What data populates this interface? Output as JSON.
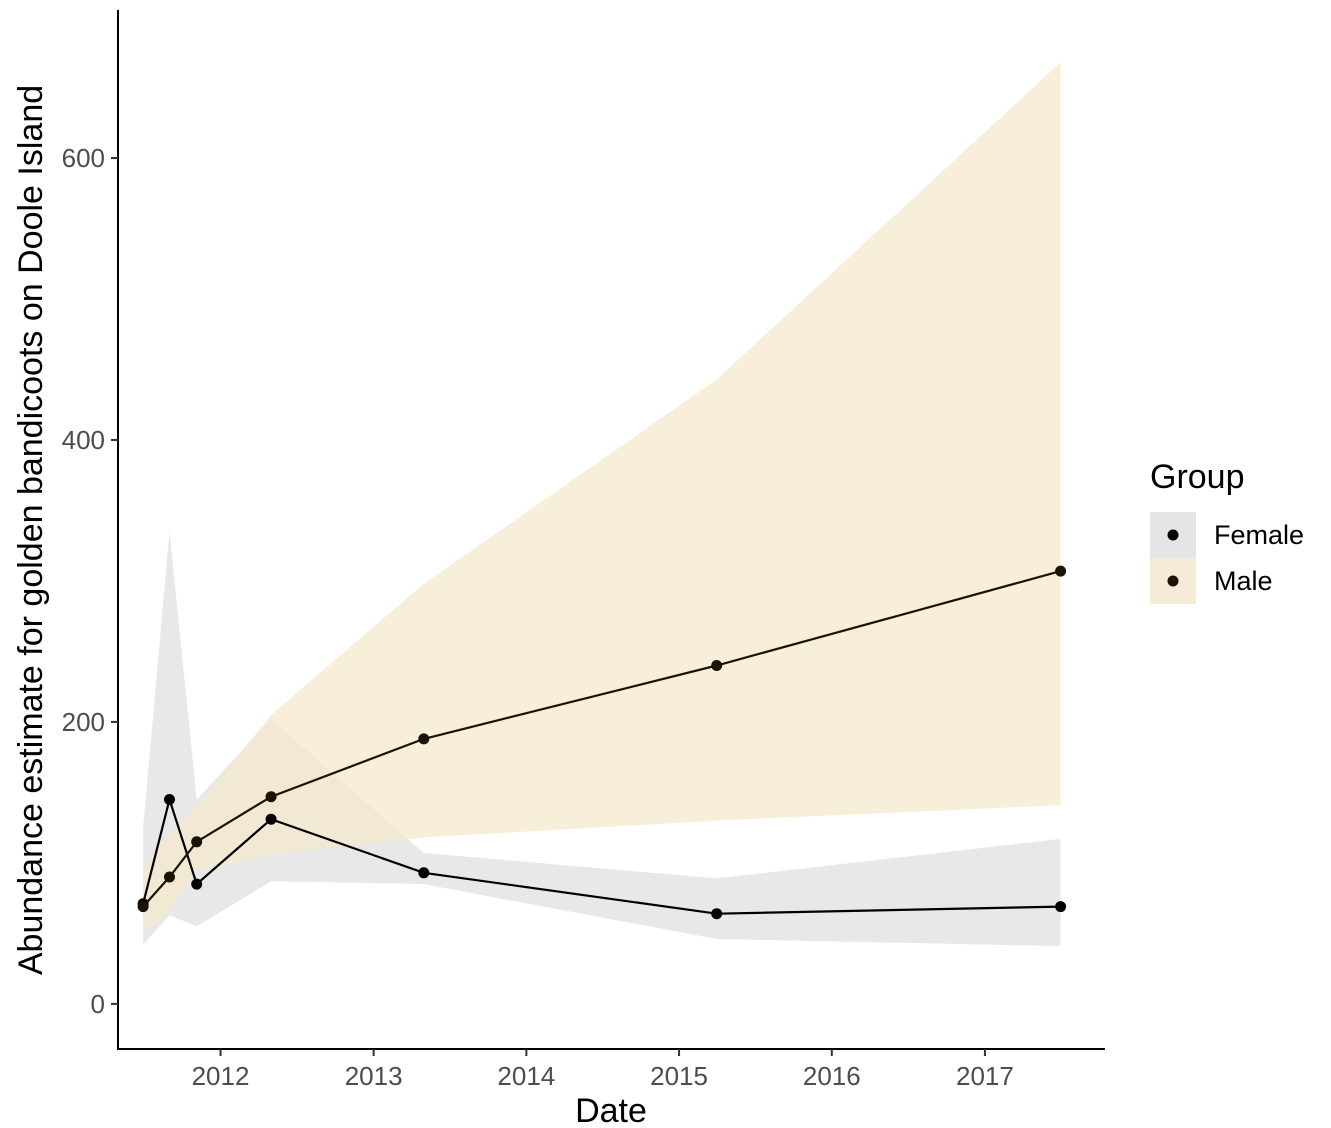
{
  "chart_data": {
    "type": "line",
    "xlabel": "Date",
    "ylabel": "Abundance estimate for golden bandicoots on Doole Island",
    "xlim": [
      "2011-05-01",
      "2017-10-15"
    ],
    "ylim": [
      -32,
      705
    ],
    "x_ticks": [
      {
        "date": "2012-01-01",
        "label": "2012"
      },
      {
        "date": "2013-01-01",
        "label": "2013"
      },
      {
        "date": "2014-01-01",
        "label": "2014"
      },
      {
        "date": "2015-01-01",
        "label": "2015"
      },
      {
        "date": "2016-01-01",
        "label": "2016"
      },
      {
        "date": "2017-01-01",
        "label": "2017"
      }
    ],
    "y_ticks": [
      {
        "value": 0,
        "label": "0"
      },
      {
        "value": 200,
        "label": "200"
      },
      {
        "value": 400,
        "label": "400"
      },
      {
        "value": 600,
        "label": "600"
      }
    ],
    "grid": false,
    "legend": {
      "title": "Group",
      "position": "right"
    },
    "series": [
      {
        "name": "Female",
        "ribbon_color": "#e0e0e0",
        "line_color": "#000000",
        "point_color": "#000000",
        "points": [
          {
            "x": "2011-06-30",
            "y": 71,
            "lower": 42,
            "upper": 125
          },
          {
            "x": "2011-09-01",
            "y": 145,
            "lower": 63,
            "upper": 335
          },
          {
            "x": "2011-11-05",
            "y": 85,
            "lower": 55,
            "upper": 145
          },
          {
            "x": "2012-05-01",
            "y": 131,
            "lower": 87,
            "upper": 202
          },
          {
            "x": "2013-05-01",
            "y": 93,
            "lower": 85,
            "upper": 107
          },
          {
            "x": "2015-04-01",
            "y": 64,
            "lower": 46,
            "upper": 89
          },
          {
            "x": "2017-07-01",
            "y": 69,
            "lower": 41,
            "upper": 117
          }
        ]
      },
      {
        "name": "Male",
        "ribbon_color": "#f5e9cf",
        "line_color": "#1c1307",
        "point_color": "#1c1307",
        "points": [
          {
            "x": "2011-06-30",
            "y": 69,
            "lower": 50,
            "upper": 95
          },
          {
            "x": "2011-09-01",
            "y": 90,
            "lower": 66,
            "upper": 122
          },
          {
            "x": "2011-11-05",
            "y": 115,
            "lower": 95,
            "upper": 140
          },
          {
            "x": "2012-05-01",
            "y": 147,
            "lower": 106,
            "upper": 205
          },
          {
            "x": "2013-05-01",
            "y": 188,
            "lower": 118,
            "upper": 298
          },
          {
            "x": "2015-04-01",
            "y": 240,
            "lower": 130,
            "upper": 443
          },
          {
            "x": "2017-07-01",
            "y": 307,
            "lower": 141,
            "upper": 668
          }
        ]
      }
    ]
  }
}
